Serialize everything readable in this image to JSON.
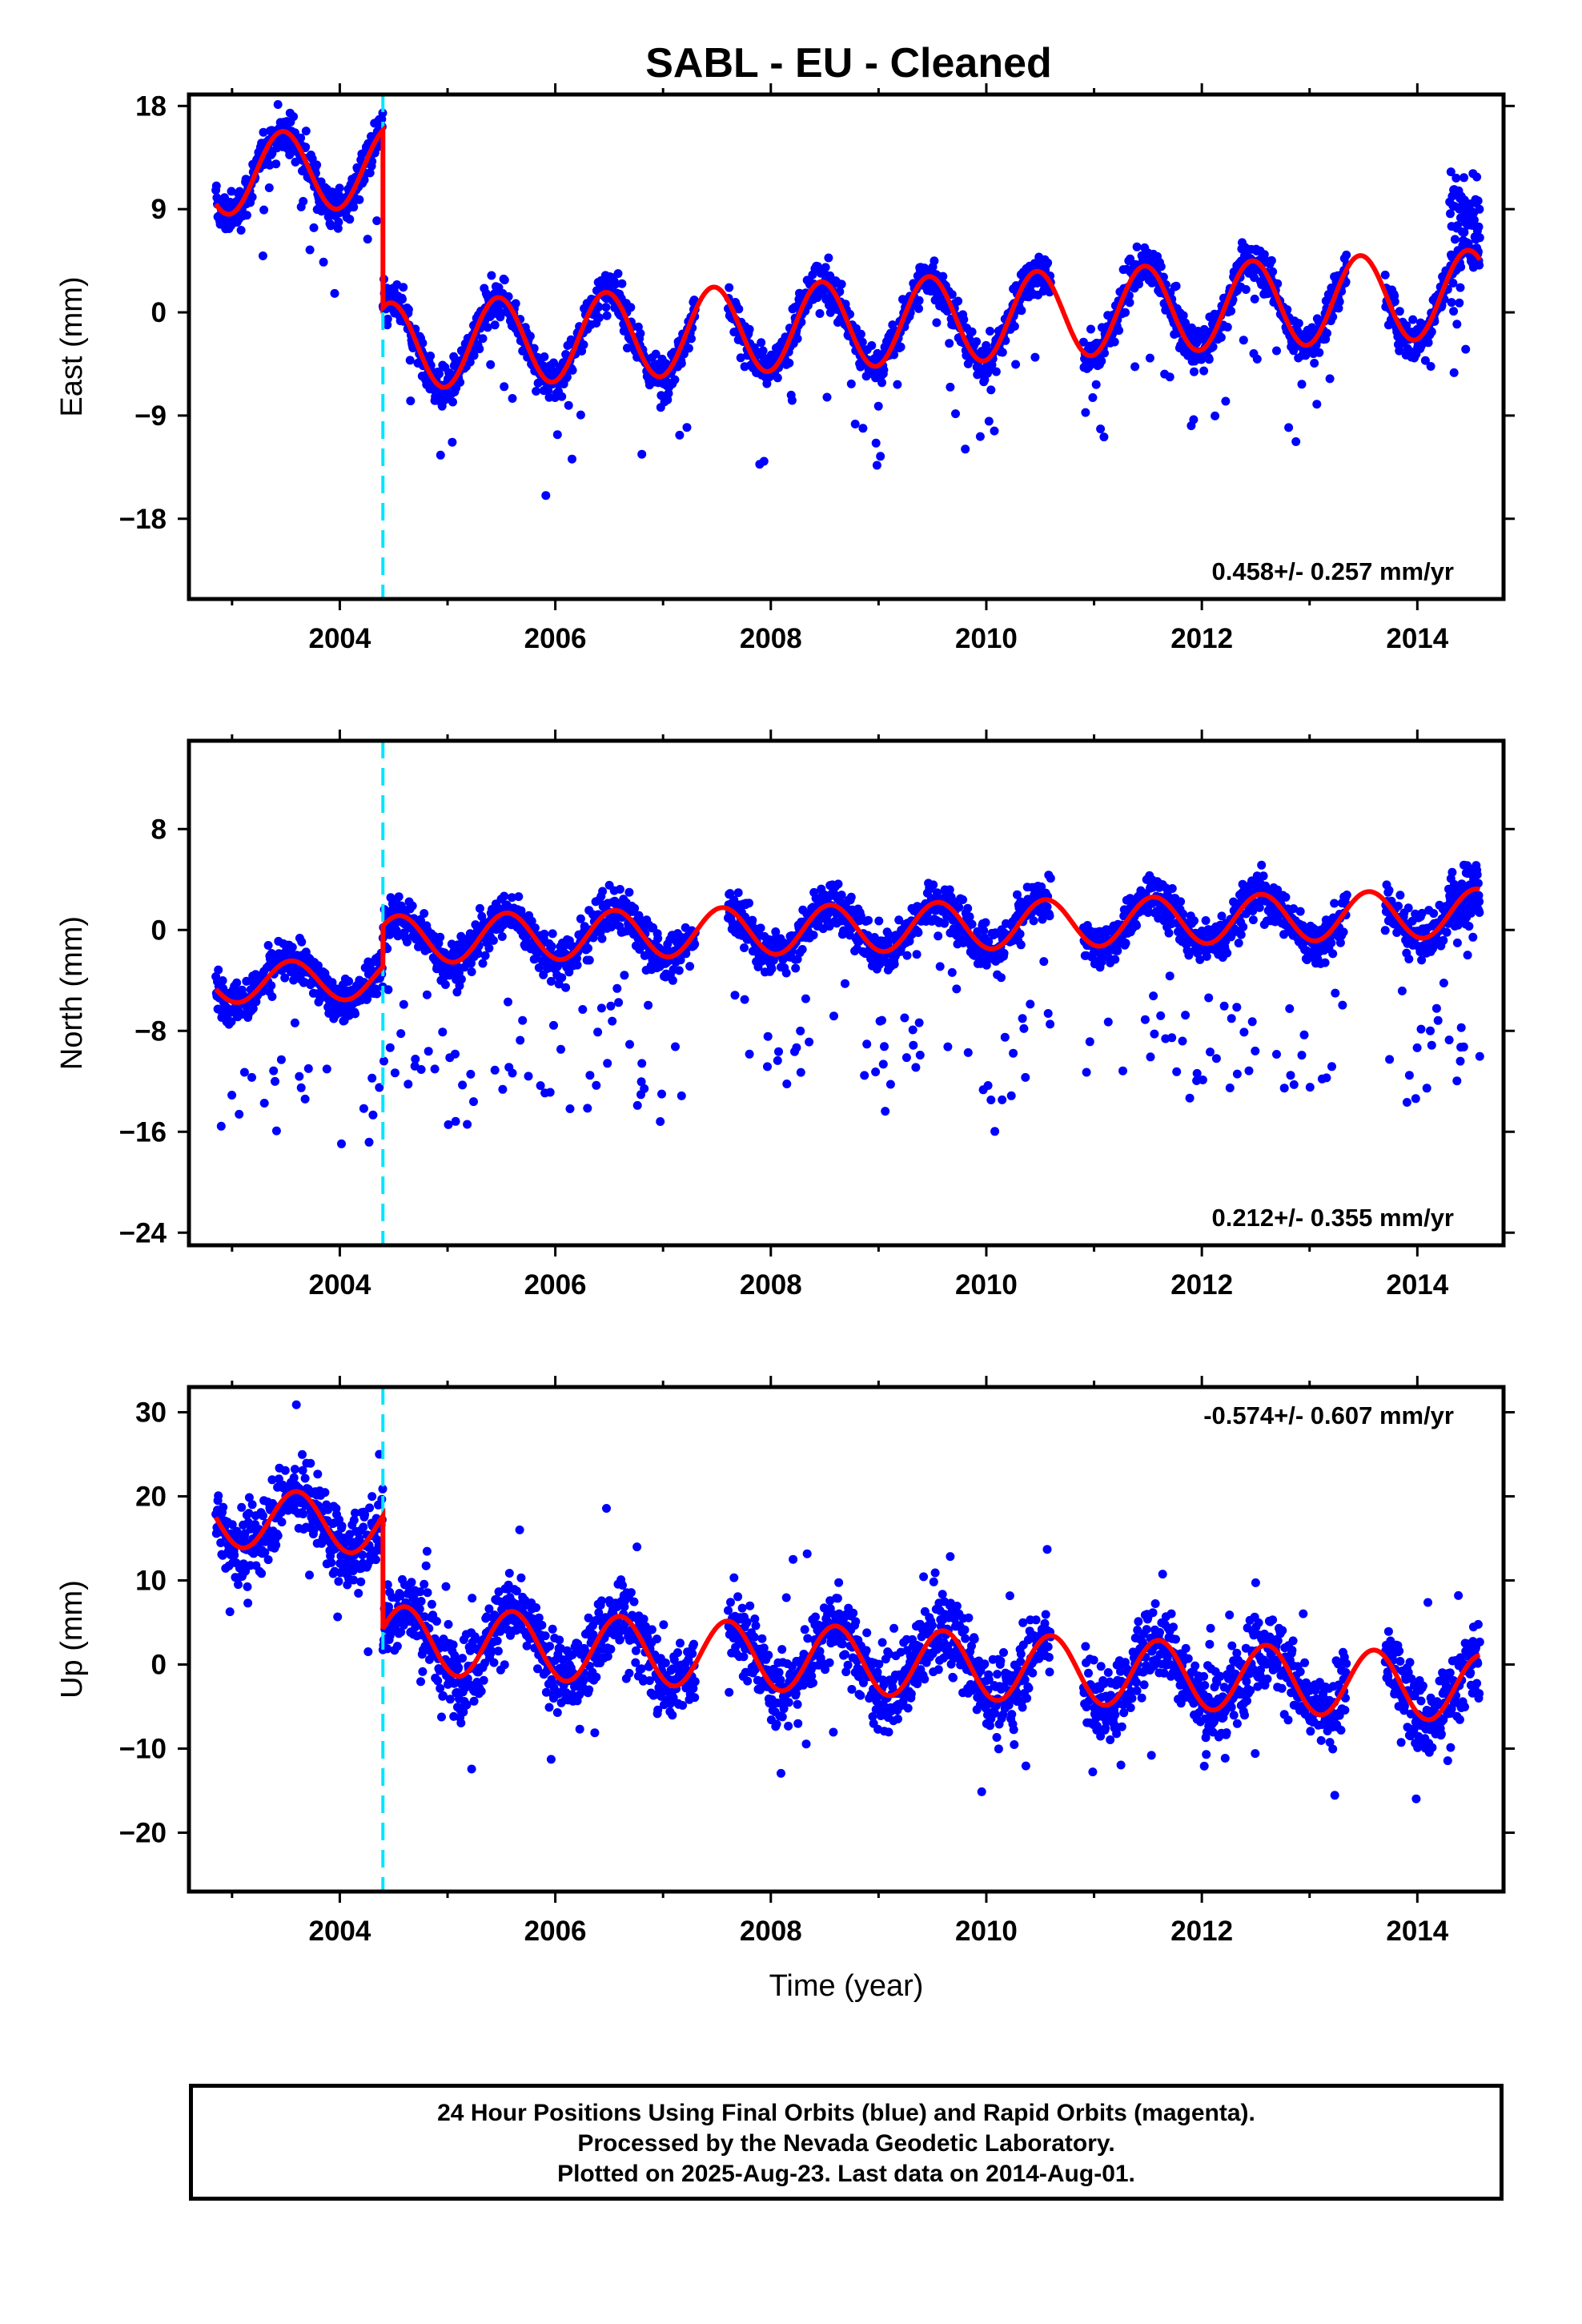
{
  "title": "SABL  - EU - Cleaned",
  "colors": {
    "points": "#0000ff",
    "model": "#ff0000",
    "break_line": "#00e5ff",
    "frame": "#000000"
  },
  "chart_data": [
    {
      "type": "scatter",
      "panel": "east",
      "ylabel": "East (mm)",
      "xlabel": "",
      "xlim": [
        2002.6,
        2014.8
      ],
      "ylim": [
        -25,
        19
      ],
      "xticks": [
        2004,
        2006,
        2008,
        2010,
        2012,
        2014
      ],
      "yticks": [
        18,
        9,
        0,
        -9,
        -18
      ],
      "yticklabels": [
        "18",
        "9",
        "0",
        "−9",
        "−18"
      ],
      "break_epoch": 2004.4,
      "rate_text": "0.458+/- 0.257 mm/yr",
      "rate_position": "bottom-right",
      "model": {
        "pre": {
          "start": 2002.85,
          "end": 2004.4,
          "offset": 12.0,
          "rate": 0.458,
          "amplitude": 3.5,
          "phase_peak": 0.47
        },
        "post": {
          "start": 2004.4,
          "end": 2014.58,
          "offset": -3.0,
          "rate": 0.458,
          "amplitude": 3.8,
          "phase_peak": 0.47
        }
      },
      "scatter": {
        "noise": 1.6,
        "outlier_rate": 0.03,
        "outlier_size": 6,
        "outlier_sign": -1,
        "gaps": [
          [
            2007.3,
            2007.6
          ],
          [
            2010.6,
            2010.9
          ],
          [
            2013.35,
            2013.7
          ]
        ],
        "extra": [
          [
            2014.3,
            9.5,
            2.0
          ]
        ]
      }
    },
    {
      "type": "scatter",
      "panel": "north",
      "ylabel": "North (mm)",
      "xlabel": "",
      "xlim": [
        2002.6,
        2014.8
      ],
      "ylim": [
        -25,
        15
      ],
      "xticks": [
        2004,
        2006,
        2008,
        2010,
        2012,
        2014
      ],
      "yticks": [
        8,
        0,
        -8,
        -16,
        -24
      ],
      "yticklabels": [
        "8",
        "0",
        "−8",
        "−16",
        "−24"
      ],
      "break_epoch": 2004.4,
      "rate_text": "0.212+/- 0.355 mm/yr",
      "rate_position": "bottom-right",
      "model": {
        "pre": {
          "start": 2002.85,
          "end": 2004.4,
          "offset": -4.2,
          "rate": 0.212,
          "amplitude": 1.6,
          "phase_peak": 0.55
        },
        "post": {
          "start": 2004.4,
          "end": 2014.58,
          "offset": -0.8,
          "rate": 0.212,
          "amplitude": 1.9,
          "phase_peak": 0.55
        }
      },
      "scatter": {
        "noise": 1.6,
        "outlier_rate": 0.09,
        "outlier_size": 9,
        "outlier_sign": -1,
        "gaps": [
          [
            2007.3,
            2007.6
          ],
          [
            2010.6,
            2010.9
          ],
          [
            2013.35,
            2013.7
          ]
        ],
        "extra": [
          [
            2014.3,
            2.5,
            2.0
          ]
        ]
      }
    },
    {
      "type": "scatter",
      "panel": "up",
      "ylabel": "Up (mm)",
      "xlabel": "Time (year)",
      "xlim": [
        2002.6,
        2014.8
      ],
      "ylim": [
        -27,
        33
      ],
      "xticks": [
        2004,
        2006,
        2008,
        2010,
        2012,
        2014
      ],
      "yticks": [
        30,
        20,
        10,
        0,
        -10,
        -20
      ],
      "yticklabels": [
        "30",
        "20",
        "10",
        "0",
        "−10",
        "−20"
      ],
      "break_epoch": 2004.4,
      "rate_text": "-0.574+/- 0.607 mm/yr",
      "rate_position": "top-right",
      "model": {
        "pre": {
          "start": 2002.85,
          "end": 2004.4,
          "offset": 17.5,
          "rate": -0.574,
          "amplitude": 3.5,
          "phase_peak": 0.6
        },
        "post": {
          "start": 2004.4,
          "end": 2014.58,
          "offset": 3.0,
          "rate": -0.574,
          "amplitude": 4.0,
          "phase_peak": 0.6
        }
      },
      "scatter": {
        "noise": 4.0,
        "outlier_rate": 0.03,
        "outlier_size": 8,
        "outlier_sign": 0,
        "gaps": [
          [
            2007.3,
            2007.6
          ],
          [
            2010.6,
            2010.9
          ],
          [
            2013.35,
            2013.7
          ]
        ],
        "extra": []
      }
    }
  ],
  "footer": {
    "line1": "24 Hour Positions Using Final Orbits (blue) and Rapid Orbits (magenta).",
    "line2": "Processed by the Nevada Geodetic Laboratory.",
    "line3": "Plotted on 2025-Aug-23. Last data on 2014-Aug-01."
  }
}
